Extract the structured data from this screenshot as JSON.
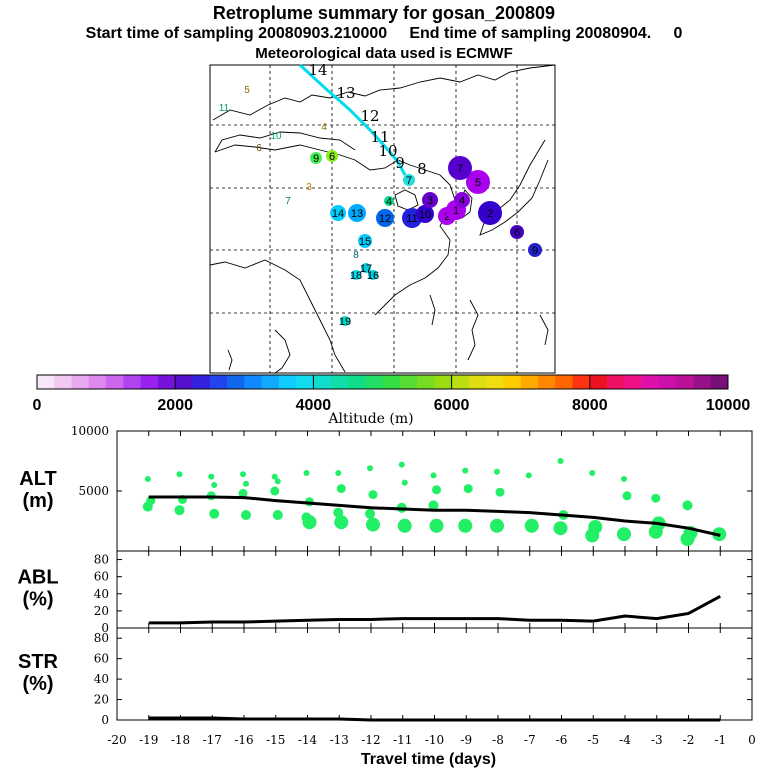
{
  "header": {
    "title": "Retroplume summary for gosan_200809",
    "sampling": "Start time of sampling 20080903.210000     End time of sampling 20080904.     0",
    "met": "Meteorological data used is ECMWF"
  },
  "colorbar": {
    "ticks": [
      "0",
      "2000",
      "4000",
      "6000",
      "8000",
      "10000"
    ],
    "label": "Altitude (m)"
  },
  "map": {
    "labels": [
      {
        "t": "14",
        "x": 318,
        "y": 75,
        "c": "#000000"
      },
      {
        "t": "13",
        "x": 346,
        "y": 98,
        "c": "#000000"
      },
      {
        "t": "12",
        "x": 370,
        "y": 121,
        "c": "#000000"
      },
      {
        "t": "11",
        "x": 380,
        "y": 142,
        "c": "#000000"
      },
      {
        "t": "10",
        "x": 388,
        "y": 156,
        "c": "#000000"
      },
      {
        "t": "9",
        "x": 400,
        "y": 168,
        "c": "#000000"
      },
      {
        "t": "8",
        "x": 422,
        "y": 174,
        "c": "#000000"
      },
      {
        "t": "5",
        "x": 247,
        "y": 93,
        "c": "#8b6a00"
      },
      {
        "t": "11",
        "x": 224,
        "y": 111,
        "c": "#00a060"
      },
      {
        "t": "4",
        "x": 324,
        "y": 130,
        "c": "#8b6a00"
      },
      {
        "t": "10",
        "x": 276,
        "y": 139,
        "c": "#00a080"
      },
      {
        "t": "6",
        "x": 259,
        "y": 151,
        "c": "#6b4a00"
      },
      {
        "t": "3",
        "x": 309,
        "y": 190,
        "c": "#c08000"
      },
      {
        "t": "7",
        "x": 288,
        "y": 204,
        "c": "#008080"
      },
      {
        "t": "8",
        "x": 356,
        "y": 258,
        "c": "#006060"
      }
    ],
    "dots": [
      {
        "n": "9",
        "x": 316,
        "y": 158,
        "r": 6,
        "c": "#44ee55"
      },
      {
        "n": "6",
        "x": 332,
        "y": 156,
        "r": 6,
        "c": "#88ee22"
      },
      {
        "n": "7",
        "x": 409,
        "y": 180,
        "r": 6,
        "c": "#22dddd"
      },
      {
        "n": "4",
        "x": 389,
        "y": 201,
        "r": 5,
        "c": "#00dd88"
      },
      {
        "n": "14",
        "x": 338,
        "y": 213,
        "r": 8,
        "c": "#00ccff"
      },
      {
        "n": "13",
        "x": 357,
        "y": 213,
        "r": 9,
        "c": "#00aaff"
      },
      {
        "n": "12",
        "x": 385,
        "y": 218,
        "r": 9,
        "c": "#0066ee"
      },
      {
        "n": "15",
        "x": 365,
        "y": 241,
        "r": 7,
        "c": "#00ccff"
      },
      {
        "n": "11",
        "x": 412,
        "y": 218,
        "r": 10,
        "c": "#2222dd"
      },
      {
        "n": "10",
        "x": 425,
        "y": 214,
        "r": 9,
        "c": "#3300cc"
      },
      {
        "n": "2",
        "x": 447,
        "y": 216,
        "r": 9,
        "c": "#aa00ee"
      },
      {
        "n": "1",
        "x": 456,
        "y": 210,
        "r": 10,
        "c": "#aa00ee"
      },
      {
        "n": "3",
        "x": 430,
        "y": 200,
        "r": 8,
        "c": "#6600cc"
      },
      {
        "n": "5",
        "x": 478,
        "y": 182,
        "r": 12,
        "c": "#aa00ee"
      },
      {
        "n": "7",
        "x": 460,
        "y": 168,
        "r": 12,
        "c": "#5500cc"
      },
      {
        "n": "4",
        "x": 462,
        "y": 200,
        "r": 8,
        "c": "#8800dd"
      },
      {
        "n": "2",
        "x": 490,
        "y": 213,
        "r": 12,
        "c": "#3300cc"
      },
      {
        "n": "6",
        "x": 517,
        "y": 232,
        "r": 7,
        "c": "#4400bb"
      },
      {
        "n": "9",
        "x": 535,
        "y": 250,
        "r": 7,
        "c": "#2222cc"
      },
      {
        "n": "17",
        "x": 366,
        "y": 268,
        "r": 5,
        "c": "#00ccdd"
      },
      {
        "n": "18",
        "x": 356,
        "y": 275,
        "r": 5,
        "c": "#00ddee"
      },
      {
        "n": "16",
        "x": 373,
        "y": 275,
        "r": 5,
        "c": "#00ccdd"
      },
      {
        "n": "19",
        "x": 345,
        "y": 321,
        "r": 5,
        "c": "#00ddcc"
      }
    ]
  },
  "chart_data": [
    {
      "type": "line",
      "title": "",
      "ylabel": "ALT\n(m)",
      "xlabel": "Travel time (days)",
      "xlim": [
        -20,
        0
      ],
      "ylim": [
        0,
        10000
      ],
      "yticks": [
        5000,
        10000
      ],
      "series": [
        {
          "name": "mean altitude",
          "x": [
            -19,
            -18,
            -17,
            -16,
            -15,
            -14,
            -13,
            -12,
            -11,
            -10,
            -9,
            -8,
            -7,
            -6,
            -5,
            -4,
            -3,
            -2,
            -1
          ],
          "y": [
            4500,
            4500,
            4500,
            4450,
            4200,
            4000,
            3800,
            3600,
            3500,
            3400,
            3400,
            3300,
            3200,
            3000,
            2800,
            2500,
            2300,
            1900,
            1300
          ]
        }
      ],
      "clusters": [
        {
          "x": -19,
          "y": [
            6000,
            4200,
            3700
          ]
        },
        {
          "x": -18,
          "y": [
            6400,
            4300,
            3400
          ]
        },
        {
          "x": -17,
          "y": [
            6200,
            5500,
            4600,
            3100
          ]
        },
        {
          "x": -16,
          "y": [
            6400,
            5600,
            4800,
            3000
          ]
        },
        {
          "x": -15,
          "y": [
            6200,
            5800,
            5000,
            3000
          ]
        },
        {
          "x": -14,
          "y": [
            6500,
            4100,
            2800,
            2400
          ]
        },
        {
          "x": -13,
          "y": [
            6500,
            5200,
            3200,
            2400
          ]
        },
        {
          "x": -12,
          "y": [
            6900,
            4700,
            3100,
            2200
          ]
        },
        {
          "x": -11,
          "y": [
            7200,
            5700,
            3600,
            2100
          ]
        },
        {
          "x": -10,
          "y": [
            6300,
            5100,
            3800,
            2100
          ]
        },
        {
          "x": -9,
          "y": [
            6700,
            5200,
            2100
          ]
        },
        {
          "x": -8,
          "y": [
            6600,
            4900,
            2100
          ]
        },
        {
          "x": -7,
          "y": [
            6300,
            2100
          ]
        },
        {
          "x": -6,
          "y": [
            7500,
            3000,
            1900
          ]
        },
        {
          "x": -5,
          "y": [
            6500,
            2000,
            1300
          ]
        },
        {
          "x": -4,
          "y": [
            6000,
            4600,
            1400
          ]
        },
        {
          "x": -3,
          "y": [
            4400,
            2300,
            1600
          ]
        },
        {
          "x": -2,
          "y": [
            3800,
            1500,
            1000
          ]
        },
        {
          "x": -1,
          "y": [
            1400
          ]
        }
      ]
    },
    {
      "type": "line",
      "title": "",
      "ylabel": "ABL\n(%)",
      "xlim": [
        -20,
        0
      ],
      "ylim": [
        0,
        90
      ],
      "yticks": [
        0,
        20,
        40,
        60,
        80
      ],
      "series": [
        {
          "name": "ABL fraction",
          "x": [
            -19,
            -18,
            -17,
            -16,
            -15,
            -14,
            -13,
            -12,
            -11,
            -10,
            -9,
            -8,
            -7,
            -6,
            -5,
            -4,
            -3,
            -2,
            -1
          ],
          "y": [
            6,
            6,
            7,
            7,
            8,
            9,
            10,
            10,
            11,
            11,
            11,
            11,
            9,
            9,
            8,
            14,
            11,
            17,
            37
          ]
        }
      ]
    },
    {
      "type": "line",
      "title": "",
      "ylabel": "STR\n(%)",
      "xlabel": "Travel time (days)",
      "xlim": [
        -20,
        0
      ],
      "ylim": [
        0,
        90
      ],
      "yticks": [
        0,
        20,
        40,
        60,
        80
      ],
      "xticks": [
        "-20",
        "-19",
        "-18",
        "-17",
        "-16",
        "-15",
        "-14",
        "-13",
        "-12",
        "-11",
        "-10",
        "-9",
        "-8",
        "-7",
        "-6",
        "-5",
        "-4",
        "-3",
        "-2",
        "-1",
        "0"
      ],
      "series": [
        {
          "name": "stratospheric fraction",
          "x": [
            -19,
            -18,
            -17,
            -16,
            -15,
            -14,
            -13,
            -12,
            -11,
            -10,
            -9,
            -8,
            -7,
            -6,
            -5,
            -4,
            -3,
            -2,
            -1
          ],
          "y": [
            2,
            2,
            2,
            1,
            1,
            1,
            1,
            0,
            0,
            0,
            0,
            0,
            0,
            0,
            0,
            0,
            0,
            0,
            0
          ]
        }
      ]
    }
  ]
}
